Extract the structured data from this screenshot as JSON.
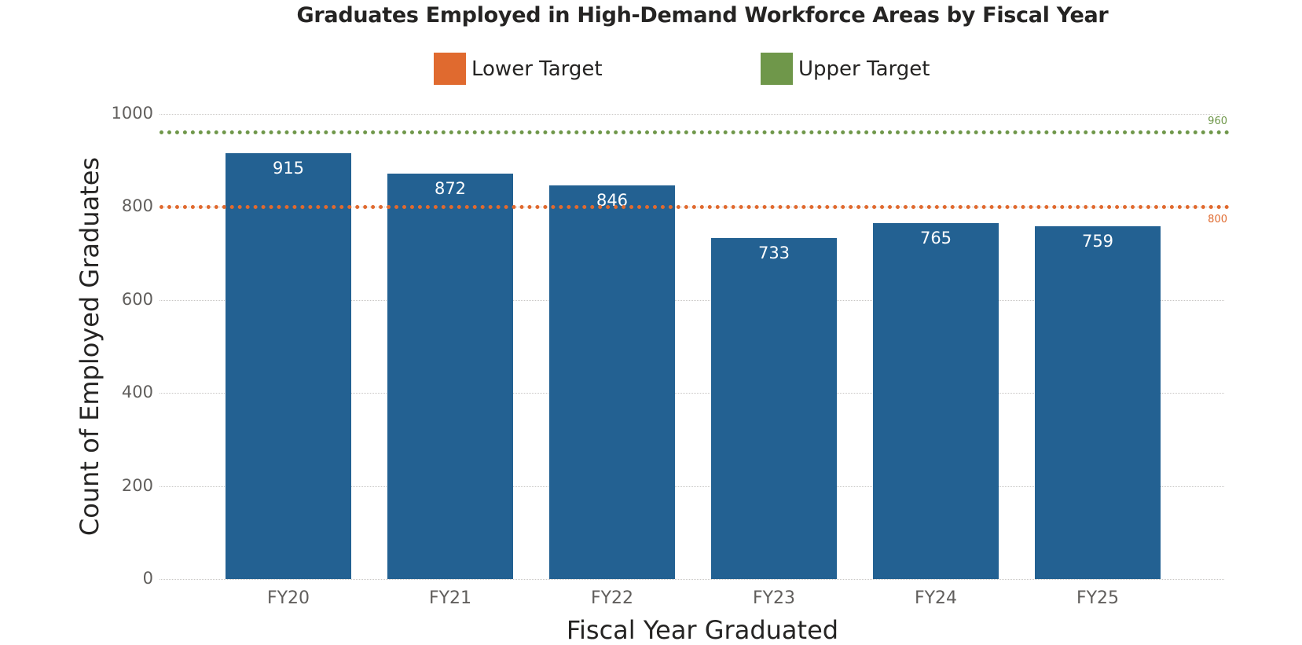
{
  "chart_data": {
    "type": "bar",
    "title": "Graduates Employed in High-Demand Workforce Areas by Fiscal Year",
    "xlabel": "Fiscal Year Graduated",
    "ylabel": "Count of Employed Graduates",
    "categories": [
      "FY20",
      "FY21",
      "FY22",
      "FY23",
      "FY24",
      "FY25"
    ],
    "values": [
      915,
      872,
      846,
      733,
      765,
      759
    ],
    "ylim": [
      0,
      1000
    ],
    "yticks": [
      "0",
      "200",
      "400",
      "600",
      "800",
      "1000"
    ],
    "grid": true,
    "legend_position": "top",
    "legend": [
      {
        "label": "Lower Target",
        "color": "#E06A2F"
      },
      {
        "label": "Upper Target",
        "color": "#6F974A"
      }
    ],
    "reference_lines": [
      {
        "name": "Lower Target",
        "value": 800,
        "label": "800",
        "color": "#E06A2F",
        "style": "dotted"
      },
      {
        "name": "Upper Target",
        "value": 960,
        "label": "960",
        "color": "#6F974A",
        "style": "dotted"
      }
    ],
    "bar_color": "#236192"
  },
  "bars": [
    {
      "label": "FY20",
      "value": "915"
    },
    {
      "label": "FY21",
      "value": "872"
    },
    {
      "label": "FY22",
      "value": "846"
    },
    {
      "label": "FY23",
      "value": "733"
    },
    {
      "label": "FY24",
      "value": "765"
    },
    {
      "label": "FY25",
      "value": "759"
    }
  ]
}
